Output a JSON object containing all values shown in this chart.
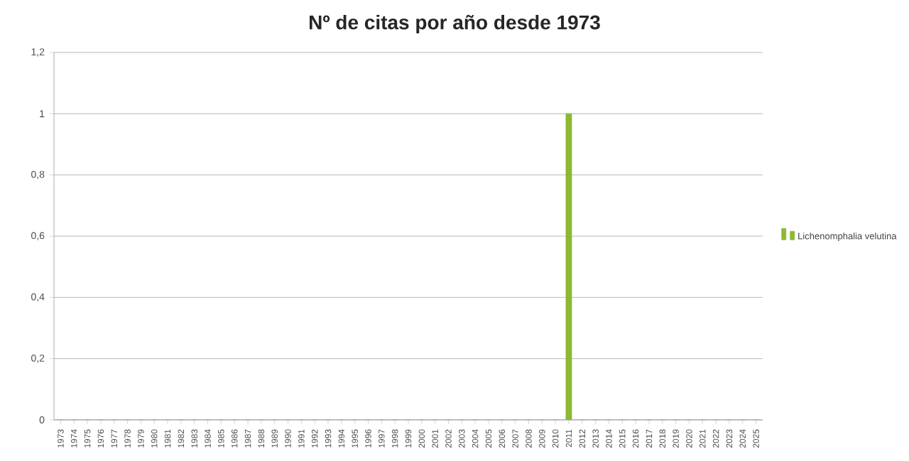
{
  "chart_data": {
    "type": "bar",
    "title": "Nº de citas por año desde 1973",
    "categories": [
      "1973",
      "1974",
      "1975",
      "1976",
      "1977",
      "1978",
      "1979",
      "1980",
      "1981",
      "1982",
      "1983",
      "1984",
      "1985",
      "1986",
      "1987",
      "1988",
      "1989",
      "1990",
      "1991",
      "1992",
      "1993",
      "1994",
      "1995",
      "1996",
      "1997",
      "1998",
      "1999",
      "2000",
      "2001",
      "2002",
      "2003",
      "2004",
      "2005",
      "2006",
      "2007",
      "2008",
      "2009",
      "2010",
      "2011",
      "2012",
      "2013",
      "2014",
      "2015",
      "2016",
      "2017",
      "2018",
      "2019",
      "2020",
      "2021",
      "2022",
      "2023",
      "2024",
      "2025"
    ],
    "series": [
      {
        "name": "Lichenomphalia velutina",
        "color": "#8db832",
        "values": [
          0,
          0,
          0,
          0,
          0,
          0,
          0,
          0,
          0,
          0,
          0,
          0,
          0,
          0,
          0,
          0,
          0,
          0,
          0,
          0,
          0,
          0,
          0,
          0,
          0,
          0,
          0,
          0,
          0,
          0,
          0,
          0,
          0,
          0,
          0,
          0,
          0,
          0,
          1,
          0,
          0,
          0,
          0,
          0,
          0,
          0,
          0,
          0,
          0,
          0,
          0,
          0,
          0
        ]
      }
    ],
    "ylim": [
      0,
      1.2
    ],
    "yticks": [
      0,
      {
        "value": 0.2,
        "label": "0,2"
      },
      {
        "value": 0.4,
        "label": "0,4"
      },
      {
        "value": 0.6,
        "label": "0,6"
      },
      {
        "value": 0.8,
        "label": "0,8"
      },
      1,
      {
        "value": 1.2,
        "label": "1,2"
      }
    ],
    "grid": "y",
    "legend": "right"
  }
}
